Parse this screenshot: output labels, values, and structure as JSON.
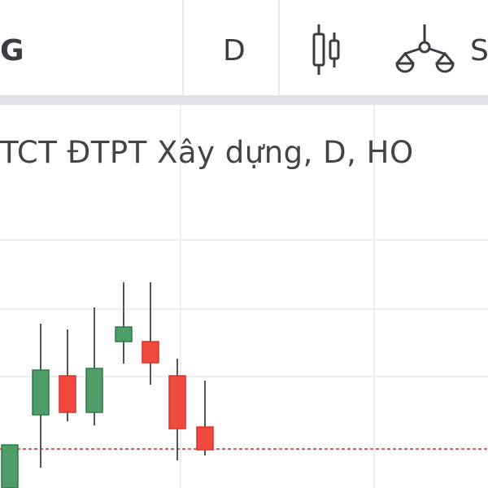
{
  "toolbar": {
    "symbol_partial": "G",
    "interval": "D",
    "chart_type_icon": "candlestick-icon",
    "indicators_icon": "indicators-scale-icon",
    "indicators_label_partial": "S"
  },
  "legend": {
    "title": "TCT ĐTPT Xây dựng, D, HO"
  },
  "colors": {
    "up": "#4f9e6a",
    "down": "#ef4a3c",
    "wick": "#555555",
    "grid": "#eceef1",
    "price_line": "#e25a55"
  },
  "chart_data": {
    "type": "candlestick",
    "price_line": 4.8,
    "candles": [
      {
        "o": 0.0,
        "h": 5.3,
        "l": 0.0,
        "c": 5.3
      },
      {
        "o": 9.0,
        "h": 20.2,
        "l": 2.5,
        "c": 14.5
      },
      {
        "o": 13.8,
        "h": 19.5,
        "l": 8.2,
        "c": 9.3
      },
      {
        "o": 9.3,
        "h": 22.2,
        "l": 7.7,
        "c": 14.7
      },
      {
        "o": 18.0,
        "h": 25.3,
        "l": 15.3,
        "c": 19.8
      },
      {
        "o": 18.0,
        "h": 25.3,
        "l": 12.7,
        "c": 15.4
      },
      {
        "o": 13.8,
        "h": 15.9,
        "l": 3.4,
        "c": 7.3
      },
      {
        "o": 7.5,
        "h": 13.2,
        "l": 4.0,
        "c": 4.7
      }
    ]
  }
}
